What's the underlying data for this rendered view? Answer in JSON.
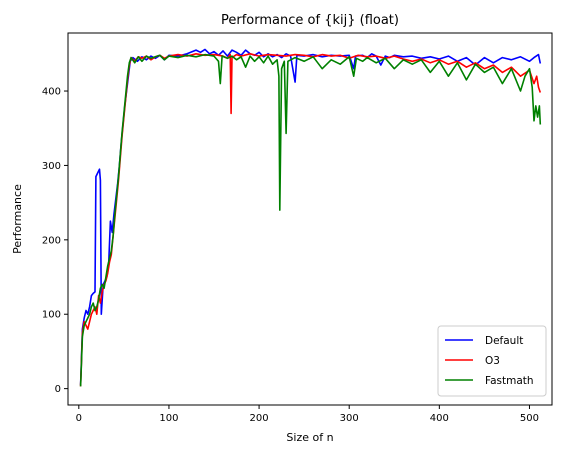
{
  "chart_data": {
    "type": "line",
    "title": "Performance of {kij} (float)",
    "xlabel": "Size of n",
    "ylabel": "Performance",
    "xlim": [
      -12,
      525
    ],
    "ylim": [
      -22,
      478
    ],
    "xticks": [
      0,
      100,
      200,
      300,
      400,
      500
    ],
    "yticks": [
      0,
      100,
      200,
      300,
      400
    ],
    "grid": false,
    "legend_position": "lower right",
    "series": [
      {
        "name": "Default",
        "color": "#0000ff",
        "points": [
          [
            2,
            5
          ],
          [
            4,
            80
          ],
          [
            6,
            95
          ],
          [
            8,
            105
          ],
          [
            10,
            100
          ],
          [
            12,
            110
          ],
          [
            14,
            125
          ],
          [
            16,
            128
          ],
          [
            18,
            130
          ],
          [
            19,
            285
          ],
          [
            21,
            290
          ],
          [
            23,
            295
          ],
          [
            24,
            280
          ],
          [
            25,
            100
          ],
          [
            27,
            140
          ],
          [
            29,
            145
          ],
          [
            31,
            150
          ],
          [
            33,
            165
          ],
          [
            35,
            225
          ],
          [
            37,
            210
          ],
          [
            39,
            235
          ],
          [
            41,
            255
          ],
          [
            43,
            275
          ],
          [
            45,
            300
          ],
          [
            47,
            330
          ],
          [
            49,
            355
          ],
          [
            51,
            380
          ],
          [
            53,
            400
          ],
          [
            55,
            420
          ],
          [
            57,
            440
          ],
          [
            60,
            445
          ],
          [
            65,
            440
          ],
          [
            70,
            446
          ],
          [
            75,
            442
          ],
          [
            80,
            447
          ],
          [
            85,
            444
          ],
          [
            90,
            448
          ],
          [
            95,
            442
          ],
          [
            100,
            448
          ],
          [
            110,
            447
          ],
          [
            120,
            450
          ],
          [
            130,
            455
          ],
          [
            135,
            452
          ],
          [
            140,
            456
          ],
          [
            145,
            450
          ],
          [
            150,
            453
          ],
          [
            155,
            448
          ],
          [
            160,
            454
          ],
          [
            165,
            447
          ],
          [
            170,
            455
          ],
          [
            175,
            452
          ],
          [
            180,
            448
          ],
          [
            185,
            455
          ],
          [
            190,
            450
          ],
          [
            195,
            448
          ],
          [
            200,
            452
          ],
          [
            205,
            446
          ],
          [
            210,
            450
          ],
          [
            215,
            446
          ],
          [
            220,
            449
          ],
          [
            225,
            445
          ],
          [
            230,
            450
          ],
          [
            235,
            447
          ],
          [
            240,
            412
          ],
          [
            242,
            448
          ],
          [
            250,
            447
          ],
          [
            260,
            449
          ],
          [
            270,
            446
          ],
          [
            280,
            448
          ],
          [
            290,
            447
          ],
          [
            300,
            448
          ],
          [
            305,
            430
          ],
          [
            307,
            447
          ],
          [
            315,
            448
          ],
          [
            320,
            445
          ],
          [
            325,
            450
          ],
          [
            330,
            447
          ],
          [
            335,
            435
          ],
          [
            340,
            447
          ],
          [
            345,
            445
          ],
          [
            350,
            448
          ],
          [
            360,
            446
          ],
          [
            370,
            447
          ],
          [
            380,
            444
          ],
          [
            390,
            446
          ],
          [
            400,
            443
          ],
          [
            410,
            447
          ],
          [
            420,
            440
          ],
          [
            430,
            445
          ],
          [
            440,
            435
          ],
          [
            450,
            445
          ],
          [
            460,
            438
          ],
          [
            470,
            445
          ],
          [
            480,
            442
          ],
          [
            490,
            446
          ],
          [
            500,
            440
          ],
          [
            505,
            445
          ],
          [
            510,
            449
          ],
          [
            512,
            437
          ]
        ]
      },
      {
        "name": "O3",
        "color": "#ff0000",
        "points": [
          [
            2,
            3
          ],
          [
            4,
            75
          ],
          [
            6,
            90
          ],
          [
            8,
            85
          ],
          [
            10,
            80
          ],
          [
            12,
            90
          ],
          [
            14,
            100
          ],
          [
            16,
            105
          ],
          [
            18,
            110
          ],
          [
            20,
            100
          ],
          [
            22,
            125
          ],
          [
            24,
            115
          ],
          [
            26,
            130
          ],
          [
            28,
            140
          ],
          [
            30,
            145
          ],
          [
            32,
            155
          ],
          [
            34,
            170
          ],
          [
            36,
            180
          ],
          [
            38,
            205
          ],
          [
            40,
            230
          ],
          [
            42,
            255
          ],
          [
            44,
            280
          ],
          [
            46,
            310
          ],
          [
            48,
            340
          ],
          [
            50,
            365
          ],
          [
            52,
            390
          ],
          [
            54,
            415
          ],
          [
            56,
            435
          ],
          [
            58,
            445
          ],
          [
            62,
            440
          ],
          [
            66,
            446
          ],
          [
            70,
            444
          ],
          [
            75,
            447
          ],
          [
            80,
            442
          ],
          [
            85,
            446
          ],
          [
            90,
            448
          ],
          [
            95,
            444
          ],
          [
            100,
            447
          ],
          [
            110,
            449
          ],
          [
            120,
            447
          ],
          [
            130,
            450
          ],
          [
            140,
            448
          ],
          [
            150,
            449
          ],
          [
            160,
            447
          ],
          [
            165,
            444
          ],
          [
            168,
            449
          ],
          [
            169,
            370
          ],
          [
            170,
            445
          ],
          [
            175,
            449
          ],
          [
            180,
            447
          ],
          [
            190,
            450
          ],
          [
            200,
            447
          ],
          [
            210,
            449
          ],
          [
            220,
            448
          ],
          [
            230,
            447
          ],
          [
            240,
            449
          ],
          [
            250,
            448
          ],
          [
            260,
            446
          ],
          [
            270,
            449
          ],
          [
            280,
            447
          ],
          [
            290,
            448
          ],
          [
            300,
            444
          ],
          [
            310,
            448
          ],
          [
            320,
            446
          ],
          [
            330,
            447
          ],
          [
            340,
            444
          ],
          [
            350,
            447
          ],
          [
            360,
            443
          ],
          [
            370,
            440
          ],
          [
            380,
            443
          ],
          [
            390,
            438
          ],
          [
            400,
            442
          ],
          [
            410,
            436
          ],
          [
            420,
            440
          ],
          [
            430,
            432
          ],
          [
            440,
            438
          ],
          [
            450,
            430
          ],
          [
            460,
            435
          ],
          [
            470,
            425
          ],
          [
            480,
            432
          ],
          [
            490,
            420
          ],
          [
            500,
            428
          ],
          [
            505,
            410
          ],
          [
            508,
            420
          ],
          [
            510,
            405
          ],
          [
            512,
            398
          ]
        ]
      },
      {
        "name": "Fastmath",
        "color": "#008000",
        "points": [
          [
            2,
            3
          ],
          [
            4,
            70
          ],
          [
            6,
            85
          ],
          [
            8,
            90
          ],
          [
            10,
            95
          ],
          [
            12,
            100
          ],
          [
            14,
            110
          ],
          [
            16,
            115
          ],
          [
            18,
            105
          ],
          [
            20,
            110
          ],
          [
            22,
            120
          ],
          [
            24,
            135
          ],
          [
            26,
            140
          ],
          [
            28,
            135
          ],
          [
            30,
            150
          ],
          [
            32,
            165
          ],
          [
            34,
            175
          ],
          [
            36,
            185
          ],
          [
            38,
            205
          ],
          [
            40,
            235
          ],
          [
            42,
            260
          ],
          [
            44,
            285
          ],
          [
            46,
            315
          ],
          [
            48,
            345
          ],
          [
            50,
            370
          ],
          [
            52,
            395
          ],
          [
            54,
            420
          ],
          [
            56,
            438
          ],
          [
            58,
            445
          ],
          [
            62,
            438
          ],
          [
            66,
            446
          ],
          [
            70,
            440
          ],
          [
            75,
            447
          ],
          [
            80,
            444
          ],
          [
            85,
            446
          ],
          [
            90,
            448
          ],
          [
            95,
            442
          ],
          [
            100,
            447
          ],
          [
            110,
            445
          ],
          [
            120,
            448
          ],
          [
            130,
            446
          ],
          [
            140,
            449
          ],
          [
            150,
            447
          ],
          [
            155,
            440
          ],
          [
            157,
            410
          ],
          [
            159,
            447
          ],
          [
            165,
            444
          ],
          [
            170,
            447
          ],
          [
            175,
            442
          ],
          [
            180,
            446
          ],
          [
            185,
            432
          ],
          [
            190,
            447
          ],
          [
            195,
            440
          ],
          [
            200,
            446
          ],
          [
            205,
            438
          ],
          [
            210,
            447
          ],
          [
            215,
            436
          ],
          [
            220,
            442
          ],
          [
            222,
            420
          ],
          [
            223,
            240
          ],
          [
            225,
            430
          ],
          [
            228,
            440
          ],
          [
            230,
            343
          ],
          [
            232,
            440
          ],
          [
            240,
            445
          ],
          [
            250,
            440
          ],
          [
            260,
            446
          ],
          [
            270,
            430
          ],
          [
            280,
            442
          ],
          [
            290,
            436
          ],
          [
            300,
            446
          ],
          [
            305,
            420
          ],
          [
            308,
            444
          ],
          [
            315,
            440
          ],
          [
            320,
            445
          ],
          [
            330,
            438
          ],
          [
            340,
            444
          ],
          [
            350,
            430
          ],
          [
            360,
            442
          ],
          [
            370,
            436
          ],
          [
            380,
            442
          ],
          [
            390,
            425
          ],
          [
            400,
            440
          ],
          [
            410,
            420
          ],
          [
            420,
            438
          ],
          [
            430,
            415
          ],
          [
            440,
            436
          ],
          [
            450,
            425
          ],
          [
            460,
            432
          ],
          [
            470,
            410
          ],
          [
            480,
            430
          ],
          [
            490,
            400
          ],
          [
            495,
            420
          ],
          [
            500,
            430
          ],
          [
            503,
            405
          ],
          [
            505,
            360
          ],
          [
            507,
            380
          ],
          [
            509,
            365
          ],
          [
            511,
            380
          ],
          [
            512,
            355
          ]
        ]
      }
    ]
  }
}
